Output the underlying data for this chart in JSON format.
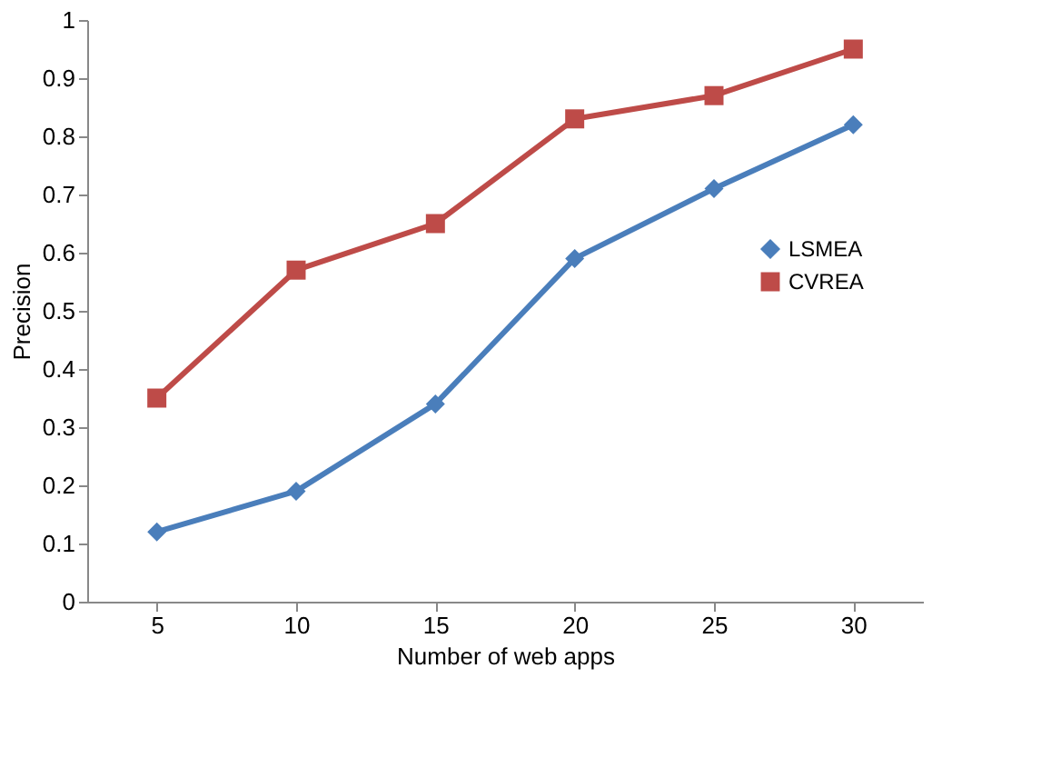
{
  "chart_data": {
    "type": "line",
    "xlabel": "Number of web apps",
    "ylabel": "Precision",
    "categories": [
      "5",
      "10",
      "15",
      "20",
      "25",
      "30"
    ],
    "series": [
      {
        "name": "LSMEA",
        "color": "#4a7ebb",
        "marker": "diamond",
        "values": [
          0.12,
          0.19,
          0.34,
          0.59,
          0.71,
          0.82
        ]
      },
      {
        "name": "CVREA",
        "color": "#be4b48",
        "marker": "square",
        "values": [
          0.35,
          0.57,
          0.65,
          0.83,
          0.87,
          0.95
        ]
      }
    ],
    "ylim": [
      0,
      1
    ],
    "yticks": [
      0,
      0.1,
      0.2,
      0.3,
      0.4,
      0.5,
      0.6,
      0.7,
      0.8,
      0.9,
      1
    ],
    "grid": false,
    "legend": "right",
    "line_style": "solid"
  }
}
